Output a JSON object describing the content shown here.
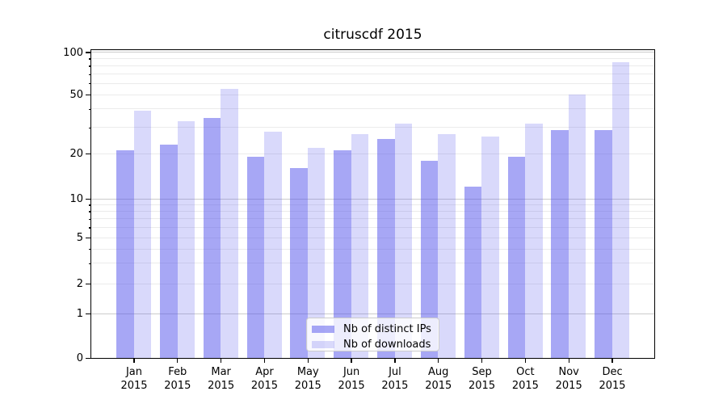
{
  "figure": {
    "title": "citruscdf 2015"
  },
  "y_axis": {
    "ticks": [
      {
        "label": "100",
        "value": 100
      },
      {
        "label": "50",
        "value": 50
      },
      {
        "label": "20",
        "value": 20
      },
      {
        "label": "10",
        "value": 10
      },
      {
        "label": "5",
        "value": 5
      },
      {
        "label": "2",
        "value": 2
      },
      {
        "label": "1",
        "value": 1
      },
      {
        "label": "0",
        "value": 0
      }
    ]
  },
  "x_axis": {
    "categories": [
      {
        "month": "Jan",
        "year": "2015"
      },
      {
        "month": "Feb",
        "year": "2015"
      },
      {
        "month": "Mar",
        "year": "2015"
      },
      {
        "month": "Apr",
        "year": "2015"
      },
      {
        "month": "May",
        "year": "2015"
      },
      {
        "month": "Jun",
        "year": "2015"
      },
      {
        "month": "Jul",
        "year": "2015"
      },
      {
        "month": "Aug",
        "year": "2015"
      },
      {
        "month": "Sep",
        "year": "2015"
      },
      {
        "month": "Oct",
        "year": "2015"
      },
      {
        "month": "Nov",
        "year": "2015"
      },
      {
        "month": "Dec",
        "year": "2015"
      }
    ]
  },
  "legend": {
    "items": [
      {
        "label": "Nb of distinct IPs",
        "swatch_hex": "#a7a7f5"
      },
      {
        "label": "Nb of downloads",
        "swatch_hex": "#d9d9fa"
      }
    ]
  },
  "chart_data": {
    "type": "bar",
    "title": "citruscdf 2015",
    "categories": [
      "Jan 2015",
      "Feb 2015",
      "Mar 2015",
      "Apr 2015",
      "May 2015",
      "Jun 2015",
      "Jul 2015",
      "Aug 2015",
      "Sep 2015",
      "Oct 2015",
      "Nov 2015",
      "Dec 2015"
    ],
    "series": [
      {
        "name": "Nb of distinct IPs",
        "color_hex": "#a7a7f5",
        "fill_rgba": "rgba(80,80,235,0.50)",
        "values": [
          21,
          23,
          35,
          19,
          16,
          21,
          25,
          18,
          12,
          19,
          29,
          29
        ]
      },
      {
        "name": "Nb of downloads",
        "color_hex": "#d9d9fa",
        "fill_rgba": "rgba(80,80,235,0.22)",
        "values": [
          39,
          33,
          55,
          28,
          22,
          27,
          32,
          27,
          26,
          32,
          50,
          85
        ]
      }
    ],
    "xlabel": "",
    "ylabel": "",
    "yscale": "symlog",
    "yticks": [
      0,
      1,
      2,
      5,
      10,
      20,
      50,
      100
    ],
    "ylim": [
      0,
      100
    ],
    "grid": true,
    "grid_which": "both",
    "legend_position": "lower center"
  }
}
